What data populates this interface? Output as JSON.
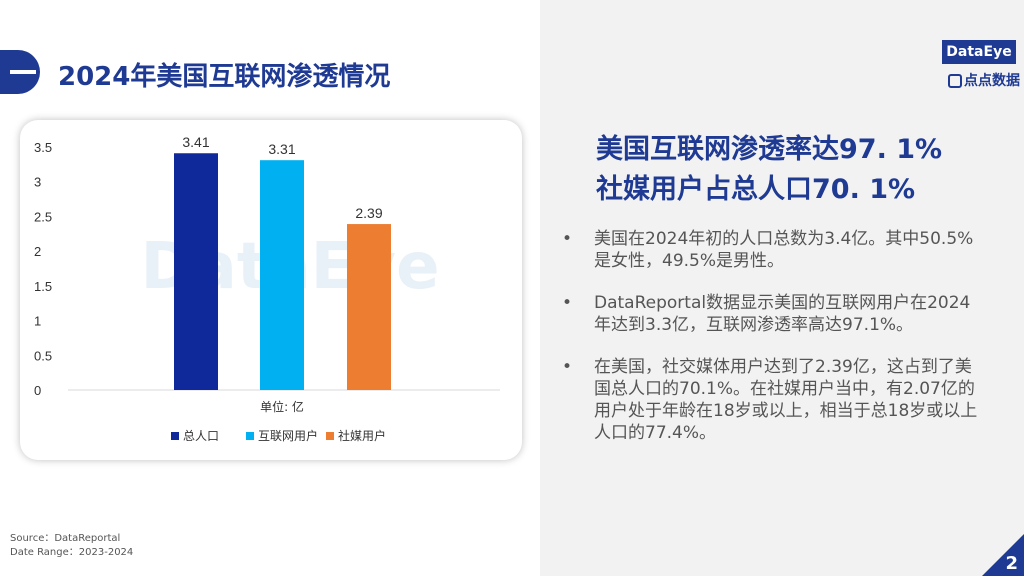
{
  "page": {
    "title": "2024年美国互联网渗透情况",
    "page_number": "2"
  },
  "logo": {
    "main": "DataEye",
    "sub": "点点数据"
  },
  "headline": {
    "line1": "美国互联网渗透率达97. 1%",
    "line2": "社媒用户占总人口70. 1%"
  },
  "bullets": [
    "美国在2024年初的人口总数为3.4亿。其中50.5%是女性，49.5%是男性。",
    "DataReportal数据显示美国的互联网用户在2024年达到3.3亿，互联网渗透率高达97.1%。",
    "在美国，社交媒体用户达到了2.39亿，这占到了美国总人口的70.1%。在社媒用户当中，有2.07亿的用户处于年龄在18岁或以上，相当于总18岁或以上人口的77.4%。"
  ],
  "source": {
    "line1": "Source：DataReportal",
    "line2": "Date Range：2023-2024"
  },
  "chart_data": {
    "type": "bar",
    "xlabel": "单位: 亿",
    "ylim": [
      0,
      3.5
    ],
    "yticks": [
      "0",
      "0.5",
      "1",
      "1.5",
      "2",
      "2.5",
      "3",
      "3.5"
    ],
    "series": [
      {
        "name": "总人口",
        "value": 3.41,
        "label": "3.41",
        "color": "#10299a"
      },
      {
        "name": "互联网用户",
        "value": 3.31,
        "label": "3.31",
        "color": "#00b0f0"
      },
      {
        "name": "社媒用户",
        "value": 2.39,
        "label": "2.39",
        "color": "#ed7d31"
      }
    ],
    "legend": "bottom",
    "watermark": "DataEye"
  }
}
